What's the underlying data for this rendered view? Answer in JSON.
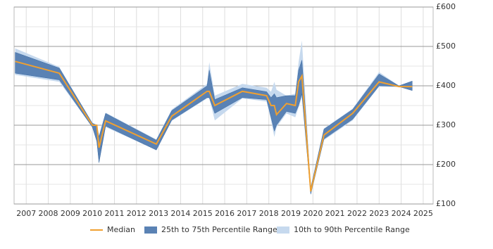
{
  "chart_data": {
    "type": "band-line",
    "x": [
      2006.5,
      2008.5,
      2010.0,
      2010.2,
      2010.3,
      2010.6,
      2012.9,
      2013.6,
      2015.2,
      2015.3,
      2015.55,
      2016.8,
      2017.9,
      2018.1,
      2018.25,
      2018.35,
      2018.8,
      2019.2,
      2019.35,
      2019.5,
      2019.9,
      2020.5,
      2021.8,
      2023.0,
      2023.9,
      2024.5
    ],
    "series": [
      {
        "name": "10th to 90th Percentile Range",
        "color": "#c6d9ee",
        "low": [
          428,
          410,
          295,
          255,
          205,
          295,
          237,
          311,
          368,
          368,
          312,
          368,
          360,
          312,
          270,
          295,
          330,
          320,
          345,
          370,
          122,
          262,
          312,
          398,
          398,
          388
        ],
        "high": [
          495,
          448,
          305,
          302,
          275,
          332,
          264,
          340,
          405,
          460,
          375,
          405,
          395,
          385,
          410,
          390,
          375,
          380,
          460,
          515,
          145,
          292,
          342,
          435,
          400,
          412
        ]
      },
      {
        "name": "25th to 75th Percentile Range",
        "color": "#5a82b4",
        "low": [
          432,
          415,
          295,
          260,
          205,
          298,
          237,
          313,
          370,
          370,
          330,
          370,
          365,
          320,
          285,
          300,
          335,
          330,
          350,
          380,
          125,
          265,
          315,
          400,
          398,
          388
        ],
        "high": [
          485,
          445,
          305,
          300,
          270,
          330,
          262,
          337,
          400,
          440,
          365,
          395,
          385,
          370,
          380,
          370,
          375,
          375,
          440,
          465,
          140,
          290,
          340,
          430,
          400,
          412
        ]
      },
      {
        "name": "Median",
        "color": "#f0a030",
        "values": [
          462,
          432,
          300,
          300,
          243,
          311,
          252,
          323,
          386,
          386,
          350,
          386,
          375,
          350,
          350,
          327,
          355,
          350,
          410,
          425,
          132,
          275,
          330,
          410,
          398,
          398
        ]
      }
    ],
    "xlim": [
      2006.45,
      2025.45
    ],
    "xticks": [
      2007,
      2008,
      2009,
      2010,
      2011,
      2012,
      2013,
      2014,
      2015,
      2016,
      2017,
      2018,
      2019,
      2020,
      2021,
      2022,
      2023,
      2024,
      2025
    ],
    "ylim": [
      100,
      600
    ],
    "yticks": [
      {
        "value": 100,
        "label": "£100"
      },
      {
        "value": 200,
        "label": "£200"
      },
      {
        "value": 300,
        "label": "£300"
      },
      {
        "value": 400,
        "label": "£400"
      },
      {
        "value": 500,
        "label": "£500"
      },
      {
        "value": 600,
        "label": "£600"
      }
    ],
    "grid": true
  }
}
